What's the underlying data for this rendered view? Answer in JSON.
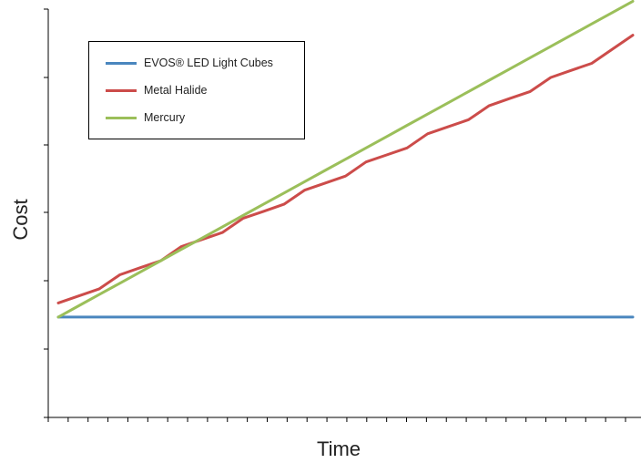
{
  "chart_data": {
    "type": "line",
    "title": "",
    "xlabel": "Time",
    "ylabel": "Cost",
    "x": [
      1,
      2,
      3,
      4,
      5,
      6,
      7,
      8,
      9,
      10,
      11,
      12,
      13,
      14,
      15,
      16,
      17,
      18,
      19,
      20,
      21,
      22,
      23,
      24,
      25,
      26,
      27,
      28,
      29
    ],
    "ylim": [
      0,
      100
    ],
    "grid": false,
    "legend_position": "top-left",
    "series": [
      {
        "name": "EVOS® LED Light Cubes",
        "color": "#4a86be",
        "values": [
          14,
          14,
          14,
          14,
          14,
          14,
          14,
          14,
          14,
          14,
          14,
          14,
          14,
          14,
          14,
          14,
          14,
          14,
          14,
          14,
          14,
          14,
          14,
          14,
          14,
          14,
          14,
          14,
          14
        ]
      },
      {
        "name": "Metal Halide",
        "color": "#cc4c4a",
        "values": [
          18,
          20,
          22,
          26,
          28,
          30,
          34,
          36,
          38,
          42,
          44,
          46,
          50,
          52,
          54,
          58,
          60,
          62,
          66,
          68,
          70,
          74,
          76,
          78,
          82,
          84,
          86,
          90,
          94
        ]
      },
      {
        "name": "Mercury",
        "color": "#9bbf5a",
        "values": [
          14,
          17.2,
          20.4,
          23.6,
          26.8,
          30,
          33.2,
          36.4,
          39.6,
          42.8,
          46,
          49.2,
          52.4,
          55.6,
          58.8,
          62,
          65.2,
          68.4,
          71.6,
          74.8,
          78,
          81.2,
          84.4,
          87.6,
          90.8,
          94,
          97.2,
          100.4,
          103.6
        ]
      }
    ]
  }
}
